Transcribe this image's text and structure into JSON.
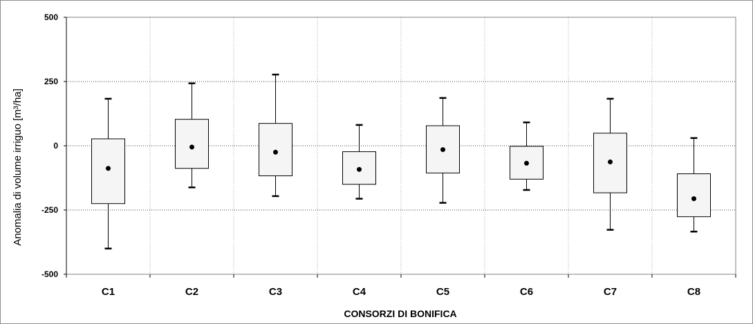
{
  "chart_data": {
    "type": "boxplot",
    "title": "",
    "xlabel": "CONSORZI  DI BONIFICA",
    "ylabel": "Anomalia di volume irriguo [m³/ha]",
    "ylim": [
      -500,
      500
    ],
    "yticks": [
      -500,
      -250,
      0,
      250,
      500
    ],
    "ytick_labels": [
      "-500",
      "-250",
      "0",
      "250",
      "500"
    ],
    "grid": true,
    "legend": "none",
    "categories": [
      "C1",
      "C2",
      "C3",
      "C4",
      "C5",
      "C6",
      "C7",
      "C8"
    ],
    "boxes": [
      {
        "category": "C1",
        "min": -400,
        "q1": -225,
        "mean": -88,
        "q3": 27,
        "max": 183
      },
      {
        "category": "C2",
        "min": -162,
        "q1": -88,
        "mean": -5,
        "q3": 103,
        "max": 243
      },
      {
        "category": "C3",
        "min": -196,
        "q1": -117,
        "mean": -25,
        "q3": 87,
        "max": 277
      },
      {
        "category": "C4",
        "min": -206,
        "q1": -150,
        "mean": -92,
        "q3": -23,
        "max": 81
      },
      {
        "category": "C5",
        "min": -222,
        "q1": -106,
        "mean": -15,
        "q3": 78,
        "max": 186
      },
      {
        "category": "C6",
        "min": -172,
        "q1": -130,
        "mean": -68,
        "q3": -2,
        "max": 91
      },
      {
        "category": "C7",
        "min": -327,
        "q1": -183,
        "mean": -63,
        "q3": 49,
        "max": 183
      },
      {
        "category": "C8",
        "min": -334,
        "q1": -276,
        "mean": -206,
        "q3": -109,
        "max": 30
      }
    ],
    "colors": {
      "box_fill": "#f5f5f5",
      "stroke": "#000000",
      "grid": "#000000",
      "frame": "#8c8c8c"
    }
  }
}
